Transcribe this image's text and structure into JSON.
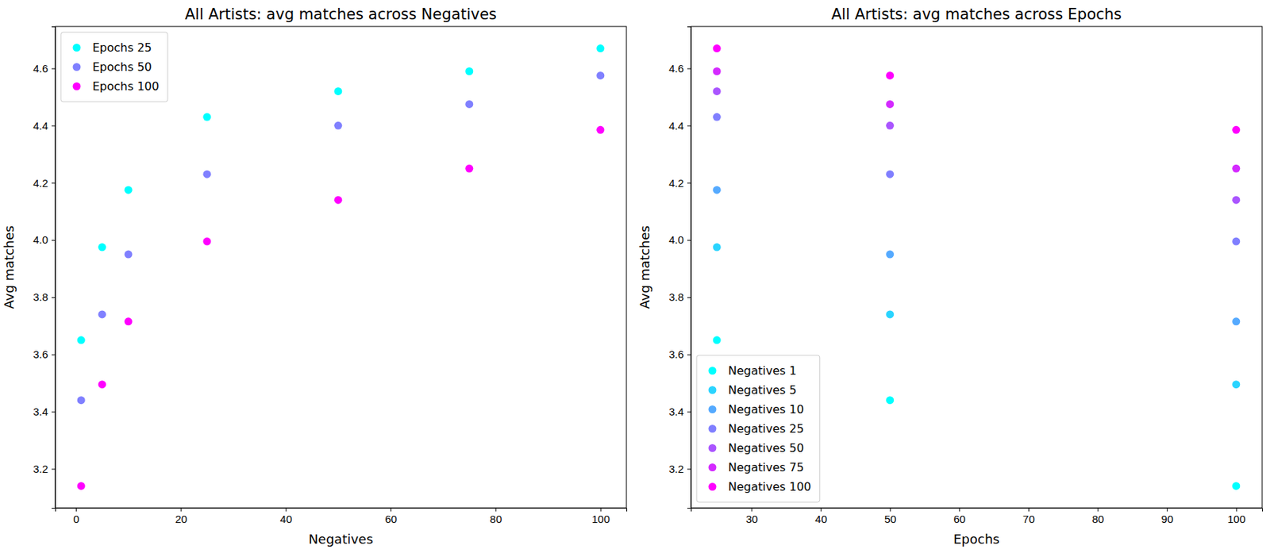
{
  "chart_data": [
    {
      "type": "scatter",
      "title": "All Artists: avg matches across Negatives",
      "x_label": "Negatives",
      "y_label": "Avg matches",
      "x": [
        1,
        5,
        10,
        25,
        50,
        75,
        100
      ],
      "series": [
        {
          "name": "Epochs 25",
          "color": "#00ffff",
          "values": [
            3.65,
            3.975,
            4.175,
            4.43,
            4.52,
            4.59,
            4.67
          ]
        },
        {
          "name": "Epochs 50",
          "color": "#8080ff",
          "values": [
            3.44,
            3.74,
            3.95,
            4.23,
            4.4,
            4.475,
            4.575
          ]
        },
        {
          "name": "Epochs 100",
          "color": "#ff00ff",
          "values": [
            3.14,
            3.495,
            3.715,
            3.995,
            4.14,
            4.25,
            4.385
          ]
        }
      ],
      "xlim": [
        -3.95,
        104.95
      ],
      "ylim": [
        3.0635,
        4.7465
      ],
      "xticks": [
        0,
        20,
        40,
        60,
        80,
        100
      ],
      "yticks": [
        3.2,
        3.4,
        3.6,
        3.8,
        {
          "value": 4,
          "label": "4.0"
        },
        4.2,
        4.4,
        4.6
      ],
      "legend": "upper-left"
    },
    {
      "type": "scatter",
      "title": "All Artists: avg matches across Epochs",
      "x_label": "Epochs",
      "y_label": "Avg matches",
      "x": [
        25,
        50,
        100
      ],
      "series": [
        {
          "name": "Negatives 1",
          "color": "#00ffff",
          "values": [
            3.65,
            3.44,
            3.14
          ]
        },
        {
          "name": "Negatives 5",
          "color": "#2ad4ff",
          "values": [
            3.975,
            3.74,
            3.495
          ]
        },
        {
          "name": "Negatives 10",
          "color": "#55aaff",
          "values": [
            4.175,
            3.95,
            3.715
          ]
        },
        {
          "name": "Negatives 25",
          "color": "#807fff",
          "values": [
            4.43,
            4.23,
            3.995
          ]
        },
        {
          "name": "Negatives 50",
          "color": "#aa55ff",
          "values": [
            4.52,
            4.4,
            4.14
          ]
        },
        {
          "name": "Negatives 75",
          "color": "#d42aff",
          "values": [
            4.59,
            4.475,
            4.25
          ]
        },
        {
          "name": "Negatives 100",
          "color": "#ff00ff",
          "values": [
            4.67,
            4.575,
            4.385
          ]
        }
      ],
      "xlim": [
        21.25,
        103.75
      ],
      "ylim": [
        3.0635,
        4.7465
      ],
      "xticks": [
        30,
        40,
        50,
        60,
        70,
        80,
        90,
        100
      ],
      "yticks": [
        3.2,
        3.4,
        3.6,
        3.8,
        {
          "value": 4,
          "label": "4.0"
        },
        4.2,
        4.4,
        4.6
      ],
      "legend": "lower-left"
    }
  ]
}
